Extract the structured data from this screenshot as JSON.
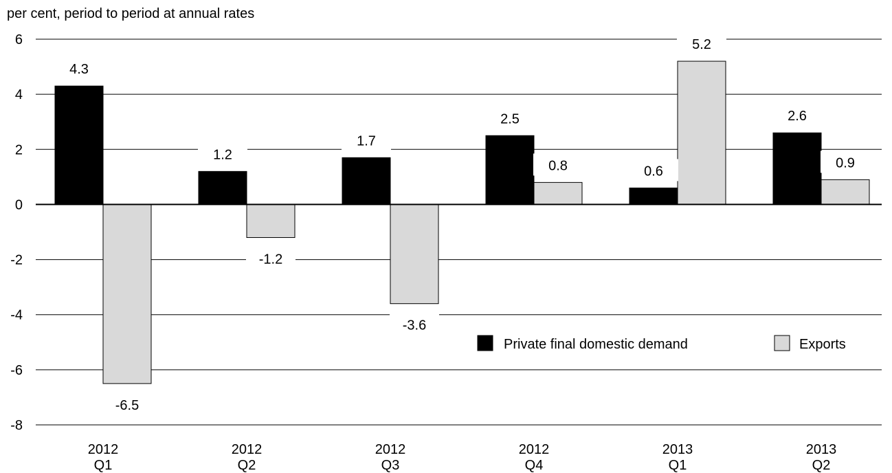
{
  "chart_data": {
    "type": "bar",
    "ylabel": "per cent, period to period at annual rates",
    "categories": [
      [
        "2012",
        "Q1"
      ],
      [
        "2012",
        "Q2"
      ],
      [
        "2012",
        "Q3"
      ],
      [
        "2012",
        "Q4"
      ],
      [
        "2013",
        "Q1"
      ],
      [
        "2013",
        "Q2"
      ]
    ],
    "series": [
      {
        "name": "Private final domestic demand",
        "color": "#000000",
        "values": [
          4.3,
          1.2,
          1.7,
          2.5,
          0.6,
          2.6
        ],
        "labels": [
          "4.3",
          "1.2",
          "1.7",
          "2.5",
          "0.6",
          "2.6"
        ]
      },
      {
        "name": "Exports",
        "color": "#d9d9d9",
        "values": [
          -6.5,
          -1.2,
          -3.6,
          0.8,
          5.2,
          0.9
        ],
        "labels": [
          "-6.5",
          "-1.2",
          "-3.6",
          "0.8",
          "5.2",
          "0.9"
        ]
      }
    ],
    "ylim": [
      -8,
      6
    ],
    "yticks": [
      6,
      4,
      2,
      0,
      -2,
      -4,
      -6,
      -8
    ],
    "grid": true,
    "legend": "bottom-right"
  }
}
